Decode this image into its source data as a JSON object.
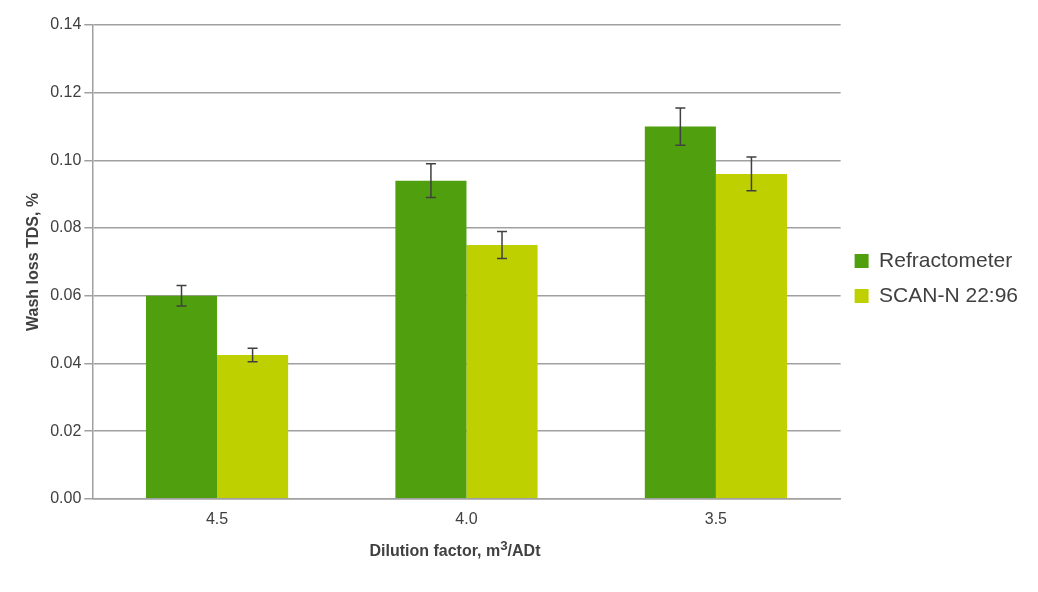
{
  "chart_data": {
    "type": "bar",
    "xlabel": "Dilution factor, m$^{3}$/ADt",
    "ylabel": "Wash loss TDS, %",
    "categories": [
      "4.5",
      "4.0",
      "3.5"
    ],
    "series": [
      {
        "name": "Refractometer",
        "color": "#4f9f0f",
        "values": [
          0.06,
          0.094,
          0.11
        ],
        "errors": [
          0.003,
          0.005,
          0.0055
        ]
      },
      {
        "name": "SCAN-N 22:96",
        "color": "#bfd000",
        "values": [
          0.0425,
          0.075,
          0.096
        ],
        "errors": [
          0.002,
          0.004,
          0.005
        ]
      }
    ],
    "ylim": [
      0,
      0.14
    ],
    "yticks": [
      {
        "value": 0,
        "label": "0.00"
      },
      {
        "value": 0.02,
        "label": "0.02"
      },
      {
        "value": 0.04,
        "label": "0.04"
      },
      {
        "value": 0.06,
        "label": "0.06"
      },
      {
        "value": 0.08,
        "label": "0.08"
      },
      {
        "value": 0.1,
        "label": "0.10"
      },
      {
        "value": 0.12,
        "label": "0.12"
      },
      {
        "value": 0.14,
        "label": "0.14"
      }
    ],
    "grid": "y",
    "legend": "right"
  }
}
